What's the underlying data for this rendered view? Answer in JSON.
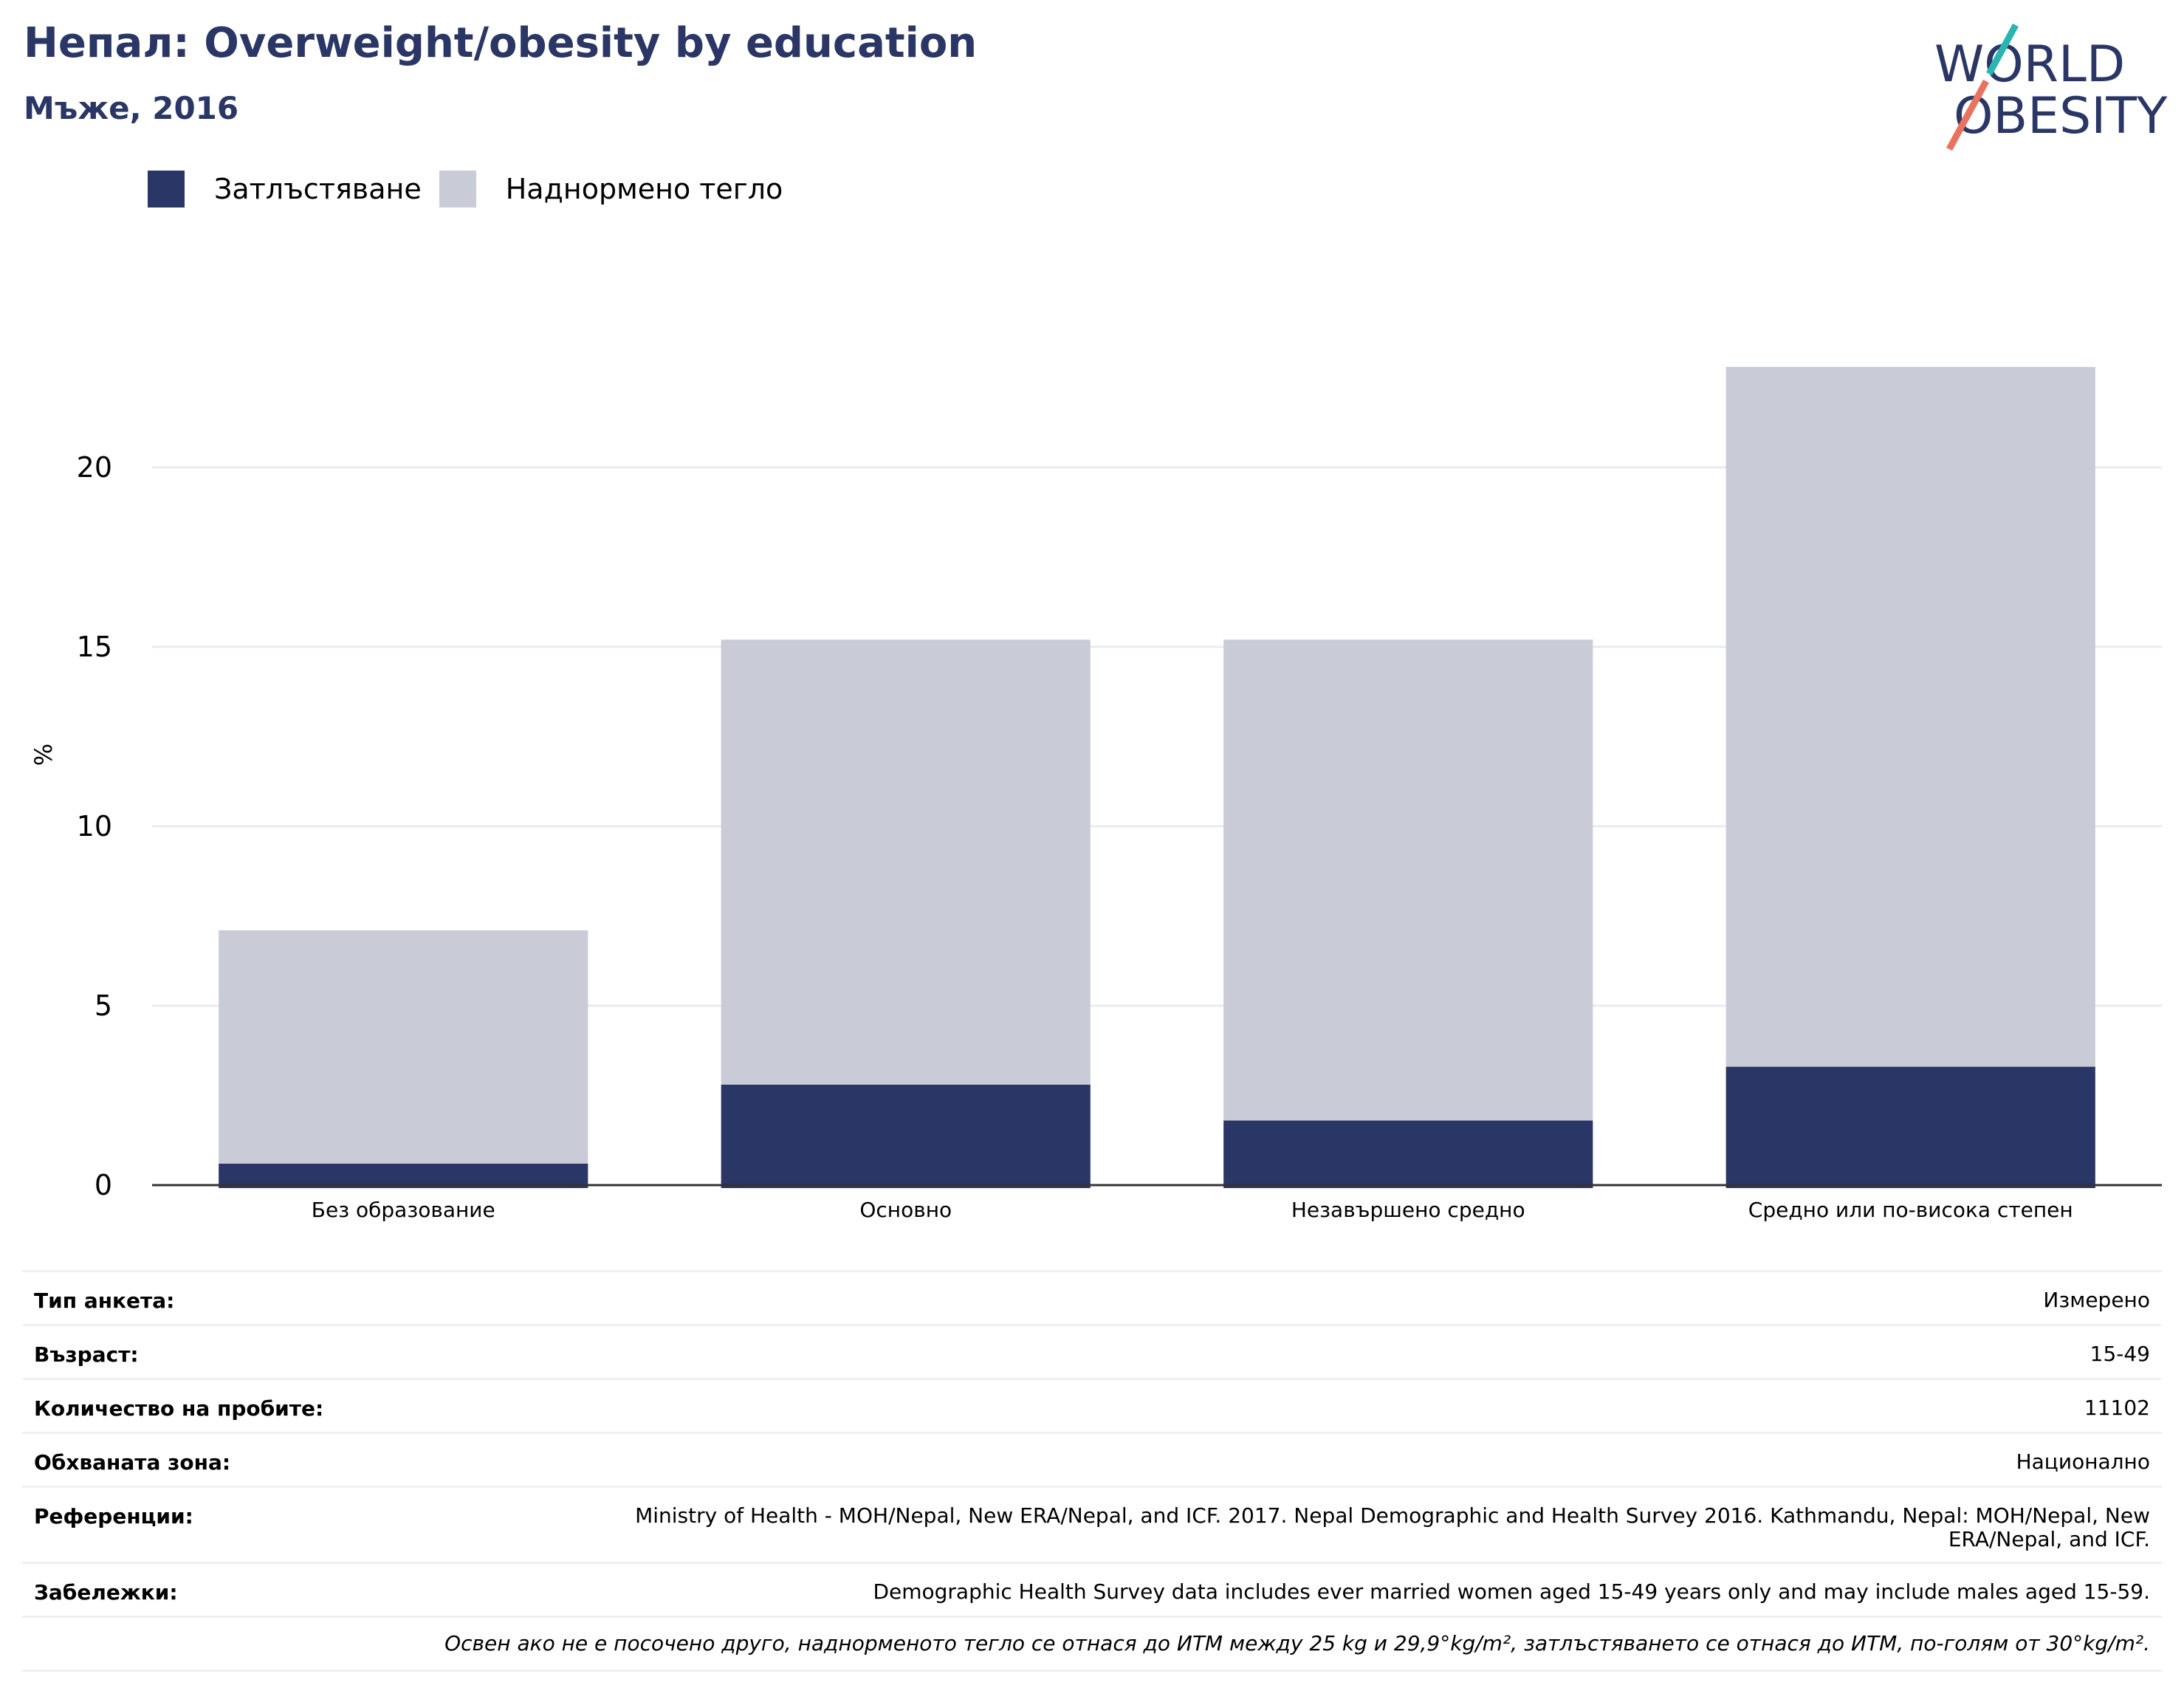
{
  "title": "Непал: Overweight/obesity by education",
  "subtitle": "Мъже, 2016",
  "logo": {
    "line1": "WORLD",
    "line2": "OBESITY"
  },
  "colors": {
    "obesity": "#2a3665",
    "overweight": "#c9cbd7",
    "title": "#2a3665",
    "logo_teal": "#2ab5b1",
    "logo_coral": "#e8735f"
  },
  "legend": [
    {
      "label": "Затлъстяване",
      "color": "#2a3665"
    },
    {
      "label": "Наднормено тегло",
      "color": "#c9cbd7"
    }
  ],
  "chart_data": {
    "type": "bar",
    "stacked": true,
    "categories": [
      "Без образование",
      "Основно",
      "Незавършено средно",
      "Средно или по-висока степен"
    ],
    "series": [
      {
        "name": "Затлъстяване",
        "values": [
          0.6,
          2.8,
          1.8,
          3.3
        ]
      },
      {
        "name": "Наднормено тегло",
        "values": [
          6.5,
          12.4,
          13.4,
          19.5
        ]
      }
    ],
    "ylabel": "%",
    "xlabel": "",
    "ylim": [
      0,
      25
    ],
    "yticks": [
      0,
      5,
      10,
      15,
      20
    ],
    "grid": true,
    "legend_position": "top-left"
  },
  "info": [
    {
      "key": "Тип анкета:",
      "value": "Измерено"
    },
    {
      "key": "Възраст:",
      "value": "15-49"
    },
    {
      "key": "Количество на пробите:",
      "value": "11102"
    },
    {
      "key": "Обхваната зона:",
      "value": "Национално"
    },
    {
      "key": "Референции:",
      "value": "Ministry of Health - MOH/Nepal, New ERA/Nepal, and ICF. 2017. Nepal Demographic and Health Survey 2016. Kathmandu, Nepal: MOH/Nepal, New ERA/Nepal, and ICF."
    },
    {
      "key": "Забележки:",
      "value": "Demographic Health Survey data includes ever married women aged 15-49 years only and may include males aged 15-59."
    }
  ],
  "footnote": "Освен ако не е посочено друго, наднорменото тегло се отнася до ИТМ между 25 kg и 29,9°kg/m², затлъстяването се отнася до ИТМ, по-голям от 30°kg/m²."
}
